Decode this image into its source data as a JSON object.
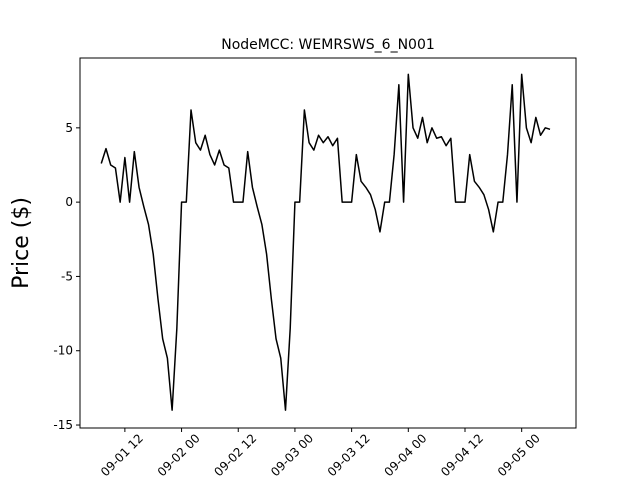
{
  "chart_data": {
    "type": "line",
    "title": "NodeMCC: WEMRSWS_6_N001",
    "y_label": "Price ($)",
    "x": [
      "09-01 07",
      "09-01 08",
      "09-01 09",
      "09-01 10",
      "09-01 11",
      "09-01 12",
      "09-01 13",
      "09-01 14",
      "09-01 15",
      "09-01 16",
      "09-01 17",
      "09-01 18",
      "09-01 19",
      "09-01 20",
      "09-01 21",
      "09-01 22",
      "09-01 23",
      "09-02 00",
      "09-02 01",
      "09-02 02",
      "09-02 03",
      "09-02 04",
      "09-02 05",
      "09-02 06",
      "09-02 07",
      "09-02 08",
      "09-02 09",
      "09-02 10",
      "09-02 11",
      "09-02 12",
      "09-02 13",
      "09-02 14",
      "09-02 15",
      "09-02 16",
      "09-02 17",
      "09-02 18",
      "09-02 19",
      "09-02 20",
      "09-02 21",
      "09-02 22",
      "09-02 23",
      "09-03 00",
      "09-03 01",
      "09-03 02",
      "09-03 03",
      "09-03 04",
      "09-03 05",
      "09-03 06",
      "09-03 07",
      "09-03 08",
      "09-03 09",
      "09-03 10",
      "09-03 11",
      "09-03 12",
      "09-03 13",
      "09-03 14",
      "09-03 15",
      "09-03 16",
      "09-03 17",
      "09-03 18",
      "09-03 19",
      "09-03 20",
      "09-03 21",
      "09-03 22",
      "09-03 23",
      "09-04 00",
      "09-04 01",
      "09-04 02",
      "09-04 03",
      "09-04 04",
      "09-04 05",
      "09-04 06",
      "09-04 07",
      "09-04 08",
      "09-04 09",
      "09-04 10",
      "09-04 11",
      "09-04 12",
      "09-04 13",
      "09-04 14",
      "09-04 15",
      "09-04 16",
      "09-04 17",
      "09-04 18",
      "09-04 19",
      "09-04 20",
      "09-04 21",
      "09-04 22",
      "09-04 23",
      "09-05 00",
      "09-05 01",
      "09-05 02",
      "09-05 03",
      "09-05 04",
      "09-05 05",
      "09-05 06"
    ],
    "series": [
      {
        "color": "#000000",
        "values": [
          2.6,
          3.6,
          2.5,
          2.3,
          0,
          3.0,
          0,
          3.4,
          1.0,
          -0.3,
          -1.5,
          -3.5,
          -6.5,
          -9.2,
          -10.5,
          -14,
          -8.5,
          0,
          0,
          6.2,
          4.0,
          3.5,
          4.5,
          3.2,
          2.5,
          3.5,
          2.5,
          2.3,
          0,
          0,
          0,
          3.4,
          1.0,
          -0.3,
          -1.5,
          -3.5,
          -6.5,
          -9.2,
          -10.5,
          -14,
          -8.5,
          0,
          0,
          6.2,
          4.0,
          3.5,
          4.5,
          4.0,
          4.4,
          3.8,
          4.3,
          0,
          0,
          0,
          3.2,
          1.4,
          1.0,
          0.5,
          -0.5,
          -2.0,
          0,
          0,
          3.2,
          7.9,
          0,
          8.6,
          5.0,
          4.3,
          5.7,
          4.0,
          5.0,
          4.3,
          4.4,
          3.8,
          4.3,
          0,
          0,
          0,
          3.2,
          1.4,
          1.0,
          0.5,
          -0.5,
          -2.0,
          0,
          0,
          3.2,
          7.9,
          0,
          8.6,
          5.0,
          4.0,
          5.7,
          4.5,
          5.0,
          4.9
        ]
      }
    ],
    "xlim": [
      "09-01 02:30",
      "09-05 11:30"
    ],
    "xticks": [
      "09-01 12",
      "09-02 00",
      "09-02 12",
      "09-03 00",
      "09-03 12",
      "09-04 00",
      "09-04 12",
      "09-05 00"
    ],
    "ylim": [
      -15.2,
      9.7
    ],
    "yticks": [
      -15,
      -10,
      -5,
      0,
      5
    ]
  }
}
